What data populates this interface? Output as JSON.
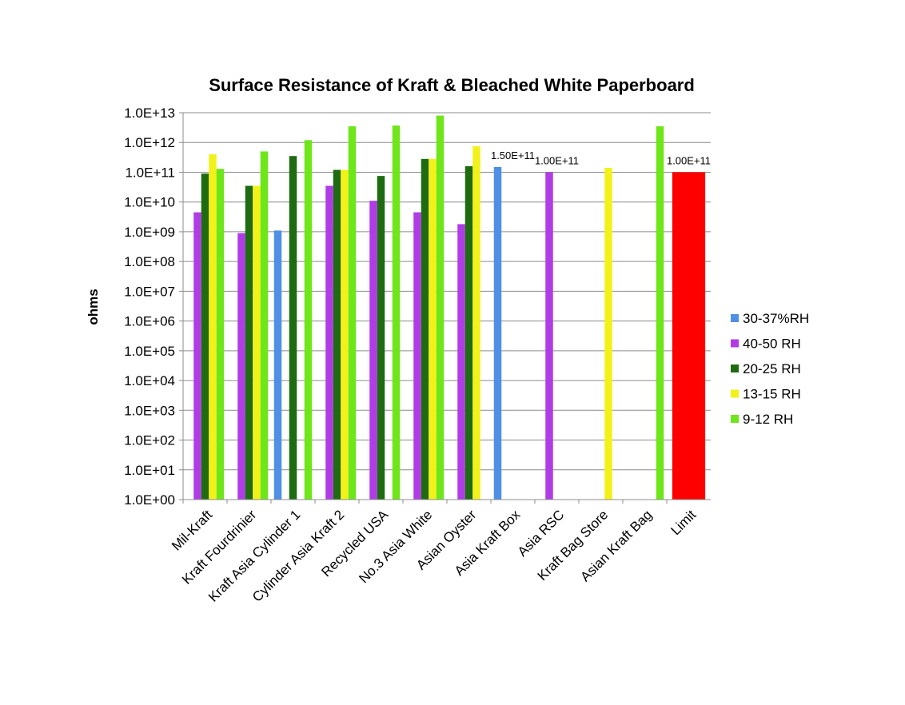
{
  "chart_data": {
    "type": "bar",
    "title": "Surface Resistance of Kraft & Bleached White Paperboard",
    "ylabel": "ohms",
    "xlabel": "",
    "yscale": "log",
    "ylim": [
      1,
      10000000000000.0
    ],
    "ytick_labels": [
      "1.0E+00",
      "1.0E+01",
      "1.0E+02",
      "1.0E+03",
      "1.0E+04",
      "1.0E+05",
      "1.0E+06",
      "1.0E+07",
      "1.0E+08",
      "1.0E+09",
      "1.0E+10",
      "1.0E+11",
      "1.0E+12",
      "1.0E+13"
    ],
    "grid": true,
    "legend_position": "right",
    "categories": [
      "Mil-Kraft",
      "Kraft Fourdrinier",
      "Kraft Asia Cylinder 1",
      "Cylinder Asia Kraft 2",
      "Recycled USA",
      "No.3 Asia White",
      "Asian Oyster",
      "Asia Kraft Box",
      "Asia RSC",
      "Kraft Bag Store",
      "Asian Kraft Bag",
      "Limit"
    ],
    "series": [
      {
        "name": "30-37%RH",
        "color": "#4f8fe6",
        "values": [
          null,
          null,
          1100000000.0,
          null,
          null,
          null,
          null,
          150000000000.0,
          null,
          null,
          null,
          null
        ]
      },
      {
        "name": "40-50 RH",
        "color": "#b03ce6",
        "values": [
          4500000000.0,
          900000000.0,
          null,
          35000000000.0,
          11000000000.0,
          4500000000.0,
          1800000000.0,
          null,
          100000000000.0,
          null,
          null,
          null
        ]
      },
      {
        "name": "20-25 RH",
        "color": "#1e6b12",
        "values": [
          90000000000.0,
          35000000000.0,
          350000000000.0,
          120000000000.0,
          75000000000.0,
          280000000000.0,
          160000000000.0,
          null,
          null,
          null,
          null,
          null
        ]
      },
      {
        "name": "13-15 RH",
        "color": "#f2f21a",
        "values": [
          400000000000.0,
          35000000000.0,
          null,
          120000000000.0,
          null,
          280000000000.0,
          750000000000.0,
          null,
          null,
          140000000000.0,
          null,
          null
        ]
      },
      {
        "name": "9-12 RH",
        "color": "#6ee61a",
        "values": [
          130000000000.0,
          500000000000.0,
          1200000000000.0,
          3500000000000.0,
          3700000000000.0,
          8000000000000.0,
          null,
          null,
          null,
          null,
          3500000000000.0,
          null
        ]
      }
    ],
    "limit": {
      "category": "Limit",
      "value": 100000000000.0,
      "color": "#ff0000"
    },
    "data_labels": [
      {
        "text": "1.50E+11",
        "category": "Asia Kraft Box"
      },
      {
        "text": "1.00E+11",
        "category": "Asia RSC"
      },
      {
        "text": "1.00E+11",
        "category": "Limit"
      }
    ]
  }
}
